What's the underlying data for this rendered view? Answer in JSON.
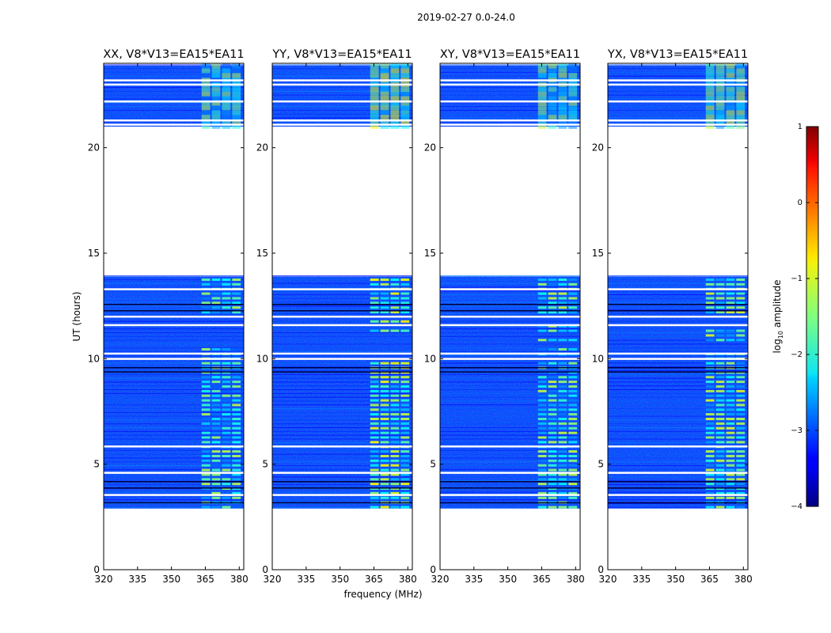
{
  "figure": {
    "suptitle": "2019-02-27 0.0-24.0",
    "xlabel": "frequency (MHz)",
    "ylabel": "UT (hours)",
    "colorbar_label_main": "log",
    "colorbar_label_sub": "10",
    "colorbar_label_rest": " amplitude",
    "colorbar_ticks": [
      "1",
      "0",
      "−1",
      "−2",
      "−3",
      "−4"
    ]
  },
  "chart_data": [
    {
      "type": "heatmap",
      "title": "XX, V8*V13=EA15*EA11",
      "xlabel": "",
      "ylabel": "UT (hours)",
      "xlim": [
        320,
        382
      ],
      "ylim": [
        0,
        24
      ],
      "x_ticks": [
        "320",
        "335",
        "350",
        "365",
        "380"
      ],
      "y_ticks": [
        "0",
        "5",
        "10",
        "15",
        "20"
      ],
      "colorscale": "jet",
      "value_range": [
        -4,
        1
      ],
      "data_intervals_hours": [
        [
          2.9,
          13.9
        ],
        [
          21.0,
          23.9
        ]
      ],
      "flagged_gaps_hours": [
        3.55,
        4.6,
        5.85,
        10.0,
        10.25,
        11.6,
        12.0,
        13.3,
        21.1,
        21.3,
        22.2,
        23.0,
        23.2
      ],
      "emission_band_MHz": [
        363,
        381
      ],
      "peak_log_amplitude": -1.2
    },
    {
      "type": "heatmap",
      "title": "YY, V8*V13=EA15*EA11",
      "xlabel": "frequency (MHz)",
      "ylabel": "",
      "xlim": [
        320,
        382
      ],
      "ylim": [
        0,
        24
      ],
      "x_ticks": [
        "320",
        "335",
        "350",
        "365",
        "380"
      ],
      "y_ticks": [
        "0",
        "5",
        "10",
        "15",
        "20"
      ],
      "colorscale": "jet",
      "value_range": [
        -4,
        1
      ],
      "data_intervals_hours": [
        [
          2.9,
          13.9
        ],
        [
          21.0,
          23.9
        ]
      ],
      "flagged_gaps_hours": [
        3.55,
        4.6,
        5.85,
        10.0,
        10.25,
        11.6,
        12.0,
        13.3,
        21.1,
        21.3,
        22.2,
        23.0,
        23.2
      ],
      "emission_band_MHz": [
        363,
        381
      ],
      "peak_log_amplitude": -0.8
    },
    {
      "type": "heatmap",
      "title": "XY, V8*V13=EA15*EA11",
      "xlabel": "",
      "ylabel": "",
      "xlim": [
        320,
        382
      ],
      "ylim": [
        0,
        24
      ],
      "x_ticks": [
        "320",
        "335",
        "350",
        "365",
        "380"
      ],
      "y_ticks": [
        "0",
        "5",
        "10",
        "15",
        "20"
      ],
      "colorscale": "jet",
      "value_range": [
        -4,
        1
      ],
      "data_intervals_hours": [
        [
          2.9,
          13.9
        ],
        [
          21.0,
          23.9
        ]
      ],
      "flagged_gaps_hours": [
        3.55,
        4.6,
        5.85,
        10.0,
        10.25,
        11.6,
        12.0,
        13.3,
        21.1,
        21.3,
        22.2,
        23.0,
        23.2
      ],
      "emission_band_MHz": [
        363,
        381
      ],
      "peak_log_amplitude": -1.1
    },
    {
      "type": "heatmap",
      "title": "YX, V8*V13=EA15*EA11",
      "xlabel": "",
      "ylabel": "",
      "xlim": [
        320,
        382
      ],
      "ylim": [
        0,
        24
      ],
      "x_ticks": [
        "320",
        "335",
        "350",
        "365",
        "380"
      ],
      "y_ticks": [
        "0",
        "5",
        "10",
        "15",
        "20"
      ],
      "colorscale": "jet",
      "value_range": [
        -4,
        1
      ],
      "data_intervals_hours": [
        [
          2.9,
          13.9
        ],
        [
          21.0,
          23.9
        ]
      ],
      "flagged_gaps_hours": [
        3.55,
        4.6,
        5.85,
        10.0,
        10.25,
        11.6,
        12.0,
        13.3,
        21.1,
        21.3,
        22.2,
        23.0,
        23.2
      ],
      "emission_band_MHz": [
        363,
        381
      ],
      "peak_log_amplitude": -1.0
    }
  ]
}
